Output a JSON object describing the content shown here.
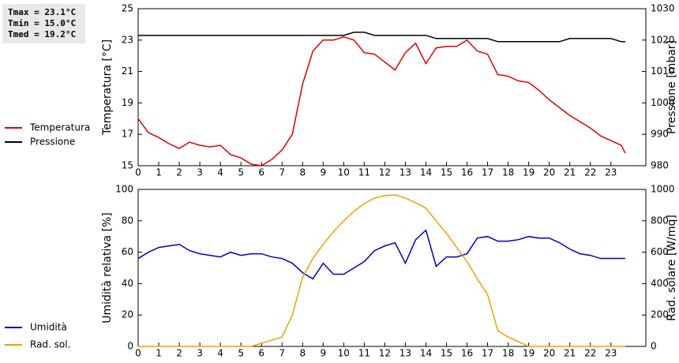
{
  "chart_data": [
    {
      "type": "line",
      "annotations": [
        "Tmax = 23.1°C",
        "Tmin = 15.0°C",
        "Tmed = 19.2°C"
      ],
      "y_label": "Temperatura [°C]",
      "y2_label": "Pressione [mbar]",
      "legend": "left",
      "x": [
        0,
        0.5,
        1,
        1.5,
        2,
        2.5,
        3,
        3.5,
        4,
        4.5,
        5,
        5.5,
        6,
        6.5,
        7,
        7.5,
        8,
        8.5,
        9,
        9.5,
        10,
        10.5,
        11,
        11.5,
        12,
        12.5,
        13,
        13.5,
        14,
        14.5,
        15,
        15.5,
        16,
        16.5,
        17,
        17.5,
        18,
        18.5,
        19,
        19.5,
        20,
        20.5,
        21,
        21.5,
        22,
        22.5,
        23,
        23.5,
        23.7
      ],
      "xlim": [
        0,
        24.7
      ],
      "xticks": [
        0,
        1,
        2,
        3,
        4,
        5,
        6,
        7,
        8,
        9,
        10,
        11,
        12,
        13,
        14,
        15,
        16,
        17,
        18,
        19,
        20,
        21,
        22,
        23
      ],
      "ylim": [
        15,
        25
      ],
      "yticks": [
        15,
        17,
        19,
        21,
        23,
        25
      ],
      "y2lim": [
        980,
        1030
      ],
      "y2ticks": [
        980,
        990,
        1000,
        1010,
        1020,
        1030
      ],
      "series": [
        {
          "name": "Temperatura",
          "color": "#dd0000",
          "values": [
            18.0,
            17.1,
            16.8,
            16.4,
            16.1,
            16.5,
            16.3,
            16.2,
            16.3,
            15.7,
            15.5,
            15.1,
            15.0,
            15.4,
            16.0,
            17.0,
            20.2,
            22.3,
            23.0,
            23.0,
            23.2,
            23.0,
            22.2,
            22.1,
            21.6,
            21.1,
            22.2,
            22.8,
            21.5,
            22.5,
            22.6,
            22.6,
            23.0,
            22.3,
            22.1,
            20.8,
            20.7,
            20.4,
            20.3,
            19.8,
            19.2,
            18.7,
            18.2,
            17.8,
            17.4,
            16.9,
            16.6,
            16.3,
            15.8
          ]
        },
        {
          "name": "Pressione",
          "color": "#000000",
          "axis": "y2",
          "values": [
            1021.5,
            1021.5,
            1021.5,
            1021.5,
            1021.5,
            1021.5,
            1021.5,
            1021.5,
            1021.5,
            1021.5,
            1021.5,
            1021.5,
            1021.5,
            1021.5,
            1021.5,
            1021.5,
            1021.5,
            1021.5,
            1021.5,
            1021.5,
            1021.5,
            1022.5,
            1022.5,
            1021.5,
            1021.5,
            1021.5,
            1021.5,
            1021.5,
            1021.5,
            1020.5,
            1020.5,
            1020.5,
            1020.5,
            1020.5,
            1020.5,
            1019.5,
            1019.5,
            1019.5,
            1019.5,
            1019.5,
            1019.5,
            1019.5,
            1020.5,
            1020.5,
            1020.5,
            1020.5,
            1020.5,
            1019.5,
            1019.5
          ]
        }
      ]
    },
    {
      "type": "line",
      "y_label": "Umidità relativa [%]",
      "y2_label": "Rad. solare [W/mq]",
      "legend": "left",
      "x": [
        0,
        0.5,
        1,
        1.5,
        2,
        2.5,
        3,
        3.5,
        4,
        4.5,
        5,
        5.5,
        6,
        6.5,
        7,
        7.5,
        8,
        8.5,
        9,
        9.5,
        10,
        10.5,
        11,
        11.5,
        12,
        12.5,
        13,
        13.5,
        14,
        14.5,
        15,
        15.5,
        16,
        16.5,
        17,
        17.5,
        18,
        18.5,
        19,
        19.5,
        20,
        20.5,
        21,
        21.5,
        22,
        22.5,
        23,
        23.5,
        23.7
      ],
      "xlim": [
        0,
        24.7
      ],
      "xticks": [
        0,
        1,
        2,
        3,
        4,
        5,
        6,
        7,
        8,
        9,
        10,
        11,
        12,
        13,
        14,
        15,
        16,
        17,
        18,
        19,
        20,
        21,
        22,
        23
      ],
      "ylim": [
        0,
        100
      ],
      "yticks": [
        0,
        20,
        40,
        60,
        80,
        100
      ],
      "y2lim": [
        0,
        1000
      ],
      "y2ticks": [
        0,
        200,
        400,
        600,
        800,
        1000
      ],
      "series": [
        {
          "name": "Umidità",
          "color": "#0000bb",
          "values": [
            56,
            60,
            63,
            64,
            65,
            61,
            59,
            58,
            57,
            60,
            58,
            59,
            59,
            57,
            56,
            53,
            47,
            43,
            53,
            46,
            46,
            50,
            54,
            61,
            64,
            66,
            53,
            68,
            74,
            51,
            57,
            57,
            59,
            69,
            70,
            67,
            67,
            68,
            70,
            69,
            69,
            66,
            62,
            59,
            58,
            56,
            56,
            56,
            56
          ]
        },
        {
          "name": "Rad. sol.",
          "color": "#f0a000",
          "axis": "y2",
          "values": [
            0,
            0,
            0,
            0,
            0,
            0,
            0,
            0,
            0,
            0,
            0,
            0,
            20,
            40,
            60,
            200,
            440,
            560,
            650,
            730,
            800,
            860,
            910,
            945,
            960,
            965,
            945,
            915,
            880,
            800,
            720,
            630,
            540,
            430,
            330,
            100,
            60,
            30,
            0,
            0,
            0,
            0,
            0,
            0,
            0,
            0,
            0,
            0,
            0
          ]
        }
      ]
    }
  ]
}
